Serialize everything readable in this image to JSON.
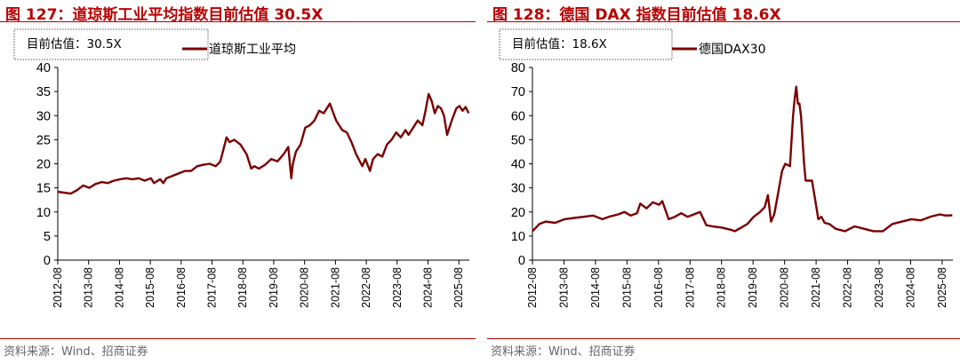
{
  "panels": [
    {
      "title": "图 127：道琼斯工业平均指数目前估值 30.5X",
      "source": "资料来源：Wind、招商证券",
      "chart_data": {
        "type": "line",
        "annotation": "目前估值：30.5X",
        "ylim": [
          0,
          40
        ],
        "yticks": [
          0,
          5,
          10,
          15,
          20,
          25,
          30,
          35,
          40
        ],
        "xticks": [
          "2012-08",
          "2013-08",
          "2014-08",
          "2015-08",
          "2016-08",
          "2017-08",
          "2018-08",
          "2019-08",
          "2020-08",
          "2021-08",
          "2022-08",
          "2023-08",
          "2024-08",
          "2025-08"
        ],
        "xlim": [
          2012.58,
          2025.92
        ],
        "series": [
          {
            "name": "道琼斯工业平均",
            "color": "#7a0000",
            "x": [
              2012.58,
              2012.8,
              2013.0,
              2013.2,
              2013.4,
              2013.6,
              2013.8,
              2014.0,
              2014.2,
              2014.4,
              2014.6,
              2014.8,
              2015.0,
              2015.2,
              2015.4,
              2015.6,
              2015.7,
              2015.9,
              2016.0,
              2016.1,
              2016.3,
              2016.5,
              2016.7,
              2016.9,
              2017.1,
              2017.3,
              2017.5,
              2017.7,
              2017.85,
              2017.95,
              2018.05,
              2018.15,
              2018.3,
              2018.5,
              2018.7,
              2018.85,
              2018.95,
              2019.1,
              2019.3,
              2019.5,
              2019.7,
              2019.9,
              2020.05,
              2020.15,
              2020.2,
              2020.3,
              2020.45,
              2020.6,
              2020.75,
              2020.9,
              2021.05,
              2021.2,
              2021.4,
              2021.6,
              2021.8,
              2021.95,
              2022.1,
              2022.25,
              2022.45,
              2022.55,
              2022.7,
              2022.8,
              2022.95,
              2023.1,
              2023.25,
              2023.4,
              2023.55,
              2023.7,
              2023.85,
              2023.95,
              2024.1,
              2024.25,
              2024.4,
              2024.5,
              2024.6,
              2024.7,
              2024.8,
              2024.9,
              2025.0,
              2025.1,
              2025.2,
              2025.25,
              2025.35,
              2025.5,
              2025.6,
              2025.7,
              2025.8,
              2025.9
            ],
            "y": [
              14.2,
              14.0,
              13.8,
              14.5,
              15.5,
              15.0,
              15.8,
              16.2,
              16.0,
              16.5,
              16.8,
              17.0,
              16.8,
              17.0,
              16.5,
              17.0,
              16.0,
              16.8,
              16.0,
              17.0,
              17.5,
              18.0,
              18.5,
              18.5,
              19.5,
              19.8,
              20.0,
              19.5,
              20.5,
              23.0,
              25.5,
              24.5,
              25.0,
              24.0,
              22.0,
              19.0,
              19.5,
              19.0,
              19.8,
              21.0,
              20.5,
              22.0,
              23.5,
              17.0,
              20.0,
              22.5,
              24.0,
              27.5,
              28.0,
              29.0,
              31.0,
              30.5,
              32.5,
              29.0,
              27.0,
              26.5,
              24.5,
              22.0,
              19.5,
              21.0,
              18.5,
              21.0,
              22.0,
              21.5,
              24.0,
              25.0,
              26.5,
              25.5,
              27.0,
              26.0,
              27.5,
              29.0,
              28.0,
              31.0,
              34.5,
              33.0,
              30.5,
              32.0,
              31.5,
              30.0,
              26.0,
              27.0,
              29.0,
              31.5,
              32.0,
              31.0,
              31.8,
              30.5
            ]
          }
        ]
      }
    },
    {
      "title": "图 128：德国 DAX 指数目前估值 18.6X",
      "source": "资料来源：Wind、招商证券",
      "chart_data": {
        "type": "line",
        "annotation": "目前估值：18.6X",
        "ylim": [
          0,
          80
        ],
        "yticks": [
          0,
          10,
          20,
          30,
          40,
          50,
          60,
          70,
          80
        ],
        "xticks": [
          "2012-08",
          "2013-08",
          "2014-08",
          "2015-08",
          "2016-08",
          "2017-08",
          "2018-08",
          "2019-08",
          "2020-08",
          "2021-08",
          "2022-08",
          "2023-08",
          "2024-08",
          "2025-08"
        ],
        "xlim": [
          2012.58,
          2025.92
        ],
        "series": [
          {
            "name": "德国DAX30",
            "color": "#7a0000",
            "x": [
              2012.58,
              2012.8,
              2013.0,
              2013.3,
              2013.6,
              2013.9,
              2014.2,
              2014.5,
              2014.8,
              2015.0,
              2015.3,
              2015.5,
              2015.7,
              2015.9,
              2016.0,
              2016.2,
              2016.4,
              2016.6,
              2016.7,
              2016.9,
              2017.1,
              2017.3,
              2017.5,
              2017.7,
              2017.9,
              2018.1,
              2018.3,
              2018.6,
              2018.9,
              2019.0,
              2019.2,
              2019.4,
              2019.6,
              2019.8,
              2019.95,
              2020.05,
              2020.15,
              2020.25,
              2020.35,
              2020.5,
              2020.6,
              2020.75,
              2020.85,
              2020.9,
              2020.95,
              2021.0,
              2021.05,
              2021.1,
              2021.15,
              2021.2,
              2021.25,
              2021.3,
              2021.35,
              2021.45,
              2021.55,
              2021.65,
              2021.75,
              2021.85,
              2022.0,
              2022.2,
              2022.5,
              2022.8,
              2023.1,
              2023.4,
              2023.7,
              2024.0,
              2024.3,
              2024.6,
              2024.9,
              2025.2,
              2025.5,
              2025.7,
              2025.9
            ],
            "y": [
              12,
              15,
              16,
              15.5,
              17,
              17.5,
              18,
              18.5,
              17,
              18,
              19,
              20,
              18.5,
              19.5,
              23.5,
              21.5,
              24,
              23,
              24.5,
              17,
              18,
              19.5,
              18,
              19,
              20,
              14.5,
              14,
              13.5,
              12.5,
              12,
              13.5,
              15,
              18,
              20,
              22,
              27,
              16,
              19,
              26,
              37,
              40,
              39,
              60,
              67,
              72,
              65,
              65,
              60,
              50,
              40,
              33,
              33,
              33,
              33,
              25,
              17,
              18,
              15.5,
              15,
              13,
              12,
              14,
              13,
              12,
              12,
              15,
              16,
              17,
              16.5,
              18,
              19,
              18.5,
              18.6
            ]
          }
        ]
      }
    }
  ]
}
